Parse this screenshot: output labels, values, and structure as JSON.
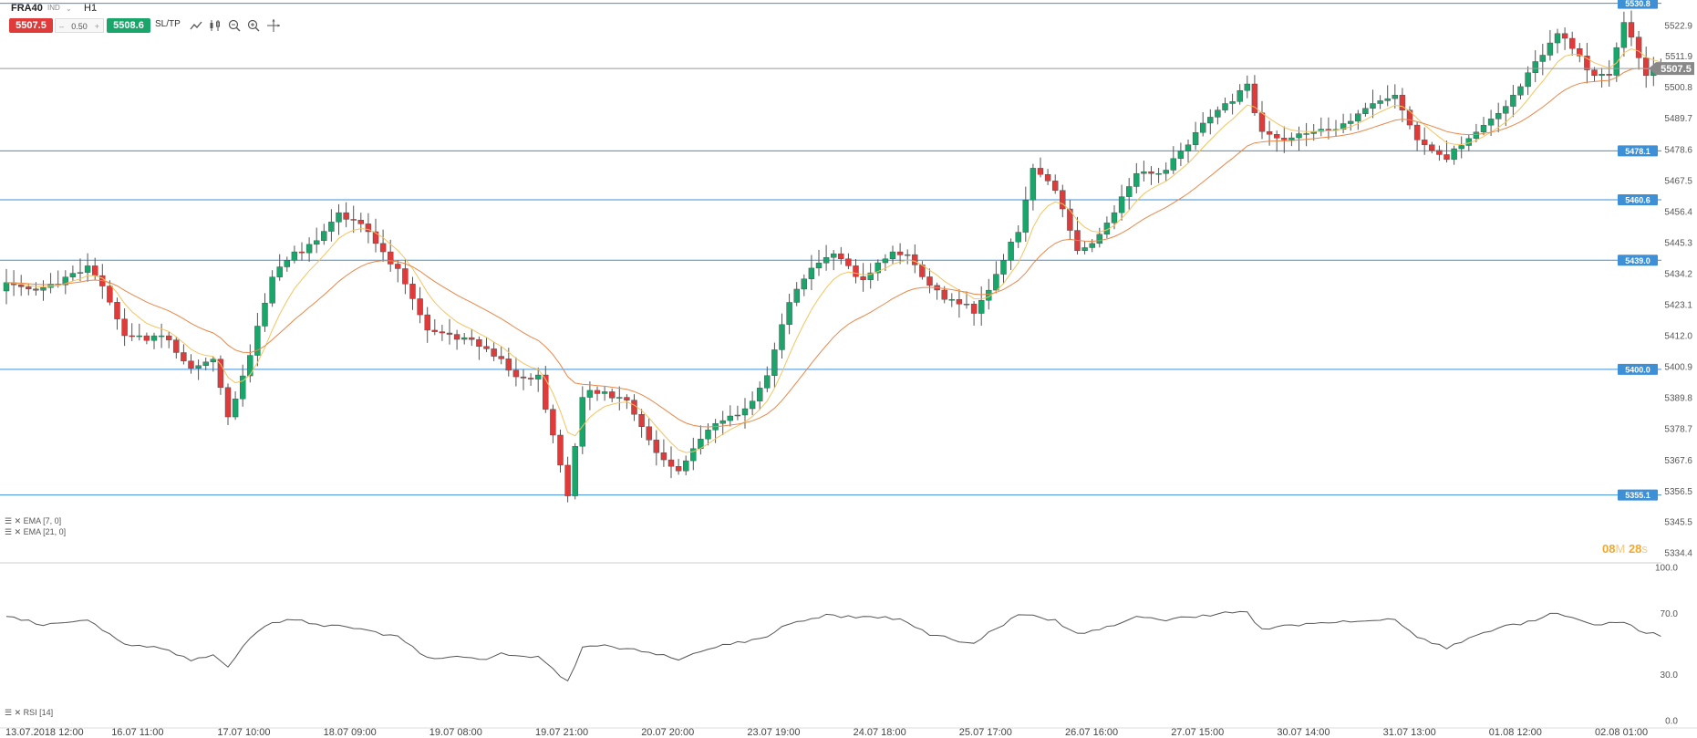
{
  "instrument": {
    "symbol": "FRA40",
    "type": "IND",
    "timeframe": "H1"
  },
  "trade_panel": {
    "sell_price": "5507.5",
    "lot": "0.50",
    "minus": "–",
    "plus": "+",
    "buy_price": "5508.6",
    "sltp_label": "SL/TP"
  },
  "toolbar_icons": [
    "line-chart-icon",
    "candles-icon",
    "zoom-out-icon",
    "zoom-in-icon",
    "crosshair-icon"
  ],
  "colors": {
    "bull": "#1aa56b",
    "bear": "#e03b3b",
    "ema_fast": "#f5c35e",
    "ema_slow": "#e8874a",
    "levels": "#3d8fd6",
    "current_price": "#999999",
    "timer": "#f0a830"
  },
  "countdown": {
    "min": "08",
    "min_unit": "M",
    "sec": "28",
    "sec_unit": "s"
  },
  "indicator_legends": {
    "ema1": "EMA [7, 0]",
    "ema2": "EMA [21, 0]",
    "rsi": "RSI [14]"
  },
  "chart_data": [
    {
      "type": "candlestick",
      "title": "FRA40 H1",
      "ylim": [
        5331.5,
        5532.0
      ],
      "y_ticks": [
        "5522.9",
        "5511.9",
        "5500.8",
        "5489.7",
        "5478.6",
        "5467.5",
        "5456.4",
        "5445.3",
        "5434.2",
        "5423.1",
        "5412.0",
        "5400.9",
        "5389.8",
        "5378.7",
        "5367.6",
        "5356.5",
        "5345.5",
        "5334.4"
      ],
      "x_ticks": [
        "13.07.2018 12:00",
        "16.07 11:00",
        "17.07 10:00",
        "18.07 09:00",
        "19.07 08:00",
        "19.07 21:00",
        "20.07 20:00",
        "23.07 19:00",
        "24.07 18:00",
        "25.07 17:00",
        "26.07 16:00",
        "27.07 15:00",
        "30.07 14:00",
        "31.07 13:00",
        "01.08 12:00",
        "02.08 01:00"
      ],
      "current_price": "5507.5",
      "levels": [
        "5530.8",
        "5478.1",
        "5460.6",
        "5439.0",
        "5400.0",
        "5355.1"
      ],
      "close_anchors": [
        [
          0,
          5431
        ],
        [
          4,
          5428
        ],
        [
          8,
          5433
        ],
        [
          11,
          5437
        ],
        [
          13,
          5430
        ],
        [
          16,
          5412
        ],
        [
          21,
          5412
        ],
        [
          25,
          5400
        ],
        [
          28,
          5404
        ],
        [
          30,
          5383
        ],
        [
          33,
          5405
        ],
        [
          36,
          5433
        ],
        [
          39,
          5442
        ],
        [
          42,
          5446
        ],
        [
          45,
          5456
        ],
        [
          48,
          5452
        ],
        [
          50,
          5445
        ],
        [
          53,
          5436
        ],
        [
          57,
          5414
        ],
        [
          61,
          5412
        ],
        [
          64,
          5410
        ],
        [
          67,
          5402
        ],
        [
          70,
          5395
        ],
        [
          72,
          5398
        ],
        [
          76,
          5355
        ],
        [
          78,
          5390
        ],
        [
          81,
          5392
        ],
        [
          84,
          5389
        ],
        [
          88,
          5370
        ],
        [
          91,
          5363
        ],
        [
          94,
          5376
        ],
        [
          97,
          5383
        ],
        [
          100,
          5384
        ],
        [
          103,
          5398
        ],
        [
          106,
          5425
        ],
        [
          109,
          5436
        ],
        [
          112,
          5442
        ],
        [
          116,
          5432
        ],
        [
          120,
          5442
        ],
        [
          122,
          5441
        ],
        [
          125,
          5430
        ],
        [
          128,
          5425
        ],
        [
          131,
          5420
        ],
        [
          134,
          5434
        ],
        [
          137,
          5449
        ],
        [
          139,
          5472
        ],
        [
          142,
          5465
        ],
        [
          145,
          5442
        ],
        [
          147,
          5445
        ],
        [
          150,
          5456
        ],
        [
          153,
          5470
        ],
        [
          156,
          5470
        ],
        [
          159,
          5478
        ],
        [
          162,
          5488
        ],
        [
          165,
          5495
        ],
        [
          168,
          5502
        ],
        [
          170,
          5485
        ],
        [
          173,
          5482
        ],
        [
          177,
          5485
        ],
        [
          181,
          5486
        ],
        [
          184,
          5494
        ],
        [
          188,
          5498
        ],
        [
          191,
          5482
        ],
        [
          195,
          5475
        ],
        [
          199,
          5485
        ],
        [
          203,
          5494
        ],
        [
          207,
          5510
        ],
        [
          210,
          5520
        ],
        [
          213,
          5512
        ],
        [
          215,
          5505
        ],
        [
          217,
          5506
        ],
        [
          219,
          5524
        ],
        [
          222,
          5505
        ],
        [
          224,
          5507.5
        ]
      ],
      "ema_legend": [
        "EMA [7, 0]",
        "EMA [21, 0]"
      ]
    },
    {
      "type": "line",
      "title": "RSI [14]",
      "ylim": [
        0,
        100
      ],
      "y_ticks": [
        "100.0",
        "70.0",
        "30.0",
        "0.0"
      ],
      "rsi_anchors": [
        [
          0,
          68
        ],
        [
          4,
          63
        ],
        [
          8,
          64
        ],
        [
          11,
          66
        ],
        [
          13,
          60
        ],
        [
          16,
          50
        ],
        [
          21,
          48
        ],
        [
          25,
          40
        ],
        [
          28,
          43
        ],
        [
          30,
          35
        ],
        [
          33,
          55
        ],
        [
          36,
          64
        ],
        [
          39,
          67
        ],
        [
          42,
          63
        ],
        [
          45,
          62
        ],
        [
          48,
          60
        ],
        [
          50,
          58
        ],
        [
          53,
          55
        ],
        [
          57,
          40
        ],
        [
          61,
          42
        ],
        [
          64,
          40
        ],
        [
          67,
          43
        ],
        [
          70,
          42
        ],
        [
          72,
          42
        ],
        [
          76,
          26
        ],
        [
          78,
          48
        ],
        [
          81,
          49
        ],
        [
          84,
          47
        ],
        [
          88,
          43
        ],
        [
          91,
          40
        ],
        [
          94,
          45
        ],
        [
          97,
          49
        ],
        [
          100,
          51
        ],
        [
          103,
          55
        ],
        [
          106,
          63
        ],
        [
          109,
          66
        ],
        [
          112,
          69
        ],
        [
          116,
          68
        ],
        [
          120,
          66
        ],
        [
          122,
          64
        ],
        [
          125,
          57
        ],
        [
          128,
          53
        ],
        [
          131,
          50
        ],
        [
          134,
          60
        ],
        [
          137,
          70
        ],
        [
          139,
          68
        ],
        [
          142,
          66
        ],
        [
          145,
          56
        ],
        [
          147,
          58
        ],
        [
          150,
          62
        ],
        [
          153,
          68
        ],
        [
          156,
          66
        ],
        [
          159,
          67
        ],
        [
          162,
          69
        ],
        [
          165,
          70
        ],
        [
          168,
          71
        ],
        [
          170,
          60
        ],
        [
          173,
          62
        ],
        [
          177,
          64
        ],
        [
          181,
          64
        ],
        [
          184,
          65
        ],
        [
          188,
          66
        ],
        [
          191,
          55
        ],
        [
          195,
          48
        ],
        [
          199,
          56
        ],
        [
          203,
          62
        ],
        [
          207,
          66
        ],
        [
          210,
          70
        ],
        [
          213,
          66
        ],
        [
          215,
          62
        ],
        [
          217,
          63
        ],
        [
          219,
          65
        ],
        [
          222,
          57
        ],
        [
          224,
          55
        ]
      ]
    }
  ]
}
